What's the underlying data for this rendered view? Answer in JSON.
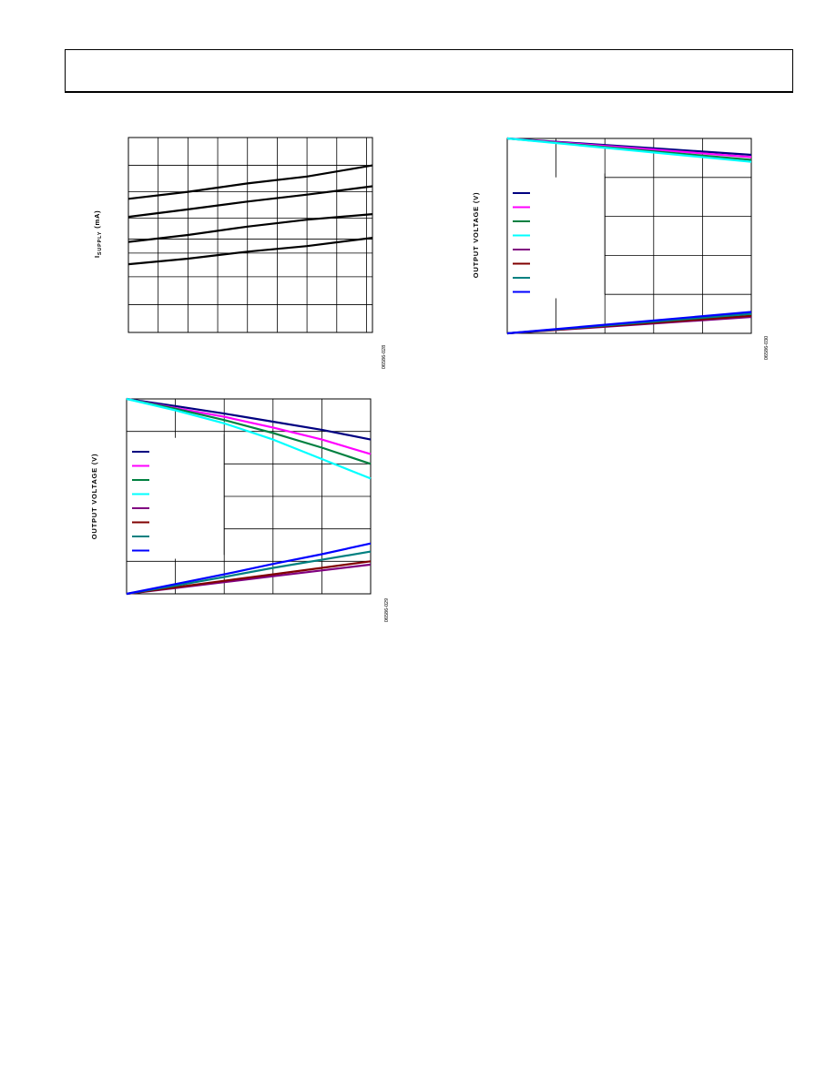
{
  "header": {
    "title": ""
  },
  "chart_data": [
    {
      "id": "chart1",
      "type": "line",
      "title": "",
      "xlabel": "",
      "ylabel": "I",
      "ylabel_sub": "SUPPLY",
      "ylabel_unit": "(mA)",
      "figure_id": "06586-028",
      "xlim": [
        0,
        8.2
      ],
      "ylim": [
        0,
        7
      ],
      "x_gridlines": [
        1,
        2,
        3,
        4,
        5,
        6,
        7,
        8
      ],
      "y_gridlines": [
        1,
        2,
        2.85,
        3.35,
        4.1,
        5.05,
        6
      ],
      "grid": true,
      "legend": "none",
      "series": [
        {
          "color": "#000000",
          "x": [
            0,
            2,
            4,
            6,
            8.2
          ],
          "y": [
            4.8,
            5.05,
            5.35,
            5.6,
            6.0
          ]
        },
        {
          "color": "#000000",
          "x": [
            0,
            2,
            4,
            6,
            8.2
          ],
          "y": [
            4.15,
            4.42,
            4.7,
            4.95,
            5.25
          ]
        },
        {
          "color": "#000000",
          "x": [
            0,
            2,
            4,
            6,
            8.2
          ],
          "y": [
            3.25,
            3.5,
            3.8,
            4.05,
            4.25
          ]
        },
        {
          "color": "#000000",
          "x": [
            0,
            2,
            4,
            6,
            8.2
          ],
          "y": [
            2.45,
            2.65,
            2.9,
            3.1,
            3.4
          ]
        }
      ]
    },
    {
      "id": "chart2",
      "type": "line",
      "title": "",
      "xlabel": "",
      "ylabel": "OUTPUT VOLTAGE (V)",
      "figure_id": "06586-030",
      "xlim": [
        0,
        5
      ],
      "ylim": [
        0,
        5
      ],
      "x_gridlines": [
        1,
        2,
        3,
        4
      ],
      "y_gridlines": [
        1,
        2,
        3,
        4
      ],
      "grid": true,
      "legend": "top-left",
      "legend_colors": [
        "#000080",
        "#ff00ff",
        "#008040",
        "#00ffff",
        "#800080",
        "#800000",
        "#008080",
        "#0000ff"
      ],
      "series": [
        {
          "color": "#000080",
          "x": [
            0,
            5
          ],
          "y": [
            5.0,
            4.58
          ]
        },
        {
          "color": "#ff00ff",
          "x": [
            0,
            5
          ],
          "y": [
            5.0,
            4.52
          ]
        },
        {
          "color": "#008040",
          "x": [
            0,
            5
          ],
          "y": [
            5.0,
            4.45
          ]
        },
        {
          "color": "#00ffff",
          "x": [
            0,
            5
          ],
          "y": [
            5.0,
            4.4
          ]
        },
        {
          "color": "#800080",
          "x": [
            0,
            5
          ],
          "y": [
            0.0,
            0.42
          ]
        },
        {
          "color": "#800000",
          "x": [
            0,
            5
          ],
          "y": [
            0.0,
            0.45
          ]
        },
        {
          "color": "#008080",
          "x": [
            0,
            5
          ],
          "y": [
            0.0,
            0.5
          ]
        },
        {
          "color": "#0000ff",
          "x": [
            0,
            5
          ],
          "y": [
            0.0,
            0.55
          ]
        }
      ]
    },
    {
      "id": "chart3",
      "type": "line",
      "title": "",
      "xlabel": "",
      "ylabel": "OUTPUT VOLTAGE (V)",
      "figure_id": "06586-029",
      "xlim": [
        0,
        5
      ],
      "ylim": [
        0,
        6
      ],
      "x_gridlines": [
        1,
        2,
        3,
        4
      ],
      "y_gridlines": [
        1,
        2,
        3,
        4,
        5
      ],
      "grid": true,
      "legend": "top-left",
      "legend_colors": [
        "#000080",
        "#ff00ff",
        "#008040",
        "#00ffff",
        "#800080",
        "#800000",
        "#008080",
        "#0000ff"
      ],
      "series": [
        {
          "color": "#000080",
          "x": [
            0,
            1,
            2,
            3,
            4,
            5
          ],
          "y": [
            6.0,
            5.78,
            5.55,
            5.3,
            5.05,
            4.75
          ]
        },
        {
          "color": "#ff00ff",
          "x": [
            0,
            1,
            2,
            3,
            4,
            5
          ],
          "y": [
            6.0,
            5.72,
            5.45,
            5.12,
            4.75,
            4.3
          ]
        },
        {
          "color": "#008040",
          "x": [
            0,
            1,
            2,
            3,
            4,
            5
          ],
          "y": [
            6.0,
            5.7,
            5.35,
            4.95,
            4.5,
            4.0
          ]
        },
        {
          "color": "#00ffff",
          "x": [
            0,
            1,
            2,
            3,
            4,
            5
          ],
          "y": [
            6.0,
            5.65,
            5.25,
            4.75,
            4.15,
            3.55
          ]
        },
        {
          "color": "#800080",
          "x": [
            0,
            1,
            2,
            3,
            4,
            5
          ],
          "y": [
            0.0,
            0.18,
            0.36,
            0.54,
            0.72,
            0.9
          ]
        },
        {
          "color": "#800000",
          "x": [
            0,
            1,
            2,
            3,
            4,
            5
          ],
          "y": [
            0.0,
            0.2,
            0.4,
            0.6,
            0.8,
            1.0
          ]
        },
        {
          "color": "#008080",
          "x": [
            0,
            1,
            2,
            3,
            4,
            5
          ],
          "y": [
            0.0,
            0.25,
            0.52,
            0.8,
            1.05,
            1.3
          ]
        },
        {
          "color": "#0000ff",
          "x": [
            0,
            1,
            2,
            3,
            4,
            5
          ],
          "y": [
            0.0,
            0.3,
            0.6,
            0.92,
            1.22,
            1.55
          ]
        }
      ]
    }
  ]
}
